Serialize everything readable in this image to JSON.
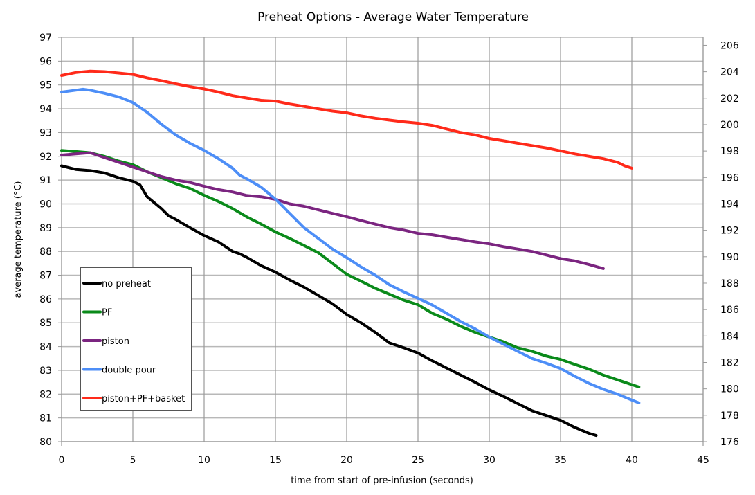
{
  "chart_data": {
    "type": "line",
    "title": "Preheat Options - Average Water Temperature",
    "xlabel": "time from start of pre-infusion (seconds)",
    "ylabel": "average temperature (°C)",
    "xlim": [
      0,
      45
    ],
    "ylim": [
      80,
      97
    ],
    "y2lim_fahrenheit": [
      176,
      206.6
    ],
    "x_ticks": [
      0,
      5,
      10,
      15,
      20,
      25,
      30,
      35,
      40,
      45
    ],
    "y_ticks": [
      80,
      81,
      82,
      83,
      84,
      85,
      86,
      87,
      88,
      89,
      90,
      91,
      92,
      93,
      94,
      95,
      96,
      97
    ],
    "y2_ticks": [
      176,
      178,
      180,
      182,
      184,
      186,
      188,
      190,
      192,
      194,
      196,
      198,
      200,
      202,
      204,
      206
    ],
    "grid": true,
    "legend_position": "lower-left",
    "series": [
      {
        "name": "no preheat",
        "color": "#000000",
        "x": [
          0,
          1,
          2,
          3,
          4,
          5,
          5.5,
          6,
          7,
          7.5,
          8,
          9,
          10,
          11,
          12,
          12.5,
          13,
          14,
          15,
          16,
          17,
          18,
          19,
          20,
          21,
          22,
          23,
          24,
          25,
          26,
          27,
          28,
          29,
          30,
          31,
          32,
          33,
          34,
          35,
          36,
          37,
          37.5
        ],
        "values": [
          91.6,
          91.45,
          91.4,
          91.3,
          91.1,
          90.95,
          90.8,
          90.3,
          89.8,
          89.5,
          89.35,
          89.0,
          88.67,
          88.4,
          88.0,
          87.9,
          87.75,
          87.4,
          87.13,
          86.8,
          86.5,
          86.15,
          85.8,
          85.35,
          85.0,
          84.6,
          84.15,
          83.95,
          83.73,
          83.4,
          83.1,
          82.8,
          82.5,
          82.18,
          81.9,
          81.6,
          81.3,
          81.1,
          80.9,
          80.6,
          80.35,
          80.26
        ]
      },
      {
        "name": "PF",
        "color": "#0a8a1a",
        "x": [
          0,
          1,
          2,
          3,
          4,
          5,
          6,
          7,
          8,
          9,
          10,
          11,
          12,
          13,
          14,
          15,
          16,
          17,
          18,
          19,
          20,
          21,
          22,
          23,
          24,
          25,
          26,
          27,
          28,
          29,
          30,
          31,
          32,
          33,
          34,
          35,
          36,
          37,
          38,
          39,
          40,
          40.5
        ],
        "values": [
          92.25,
          92.2,
          92.15,
          92.0,
          91.8,
          91.65,
          91.35,
          91.1,
          90.85,
          90.65,
          90.36,
          90.1,
          89.8,
          89.45,
          89.15,
          88.82,
          88.55,
          88.25,
          87.95,
          87.5,
          87.04,
          86.75,
          86.45,
          86.2,
          85.95,
          85.76,
          85.4,
          85.15,
          84.85,
          84.6,
          84.4,
          84.2,
          83.95,
          83.8,
          83.6,
          83.46,
          83.25,
          83.05,
          82.8,
          82.6,
          82.4,
          82.3
        ]
      },
      {
        "name": "piston",
        "color": "#7b2580",
        "x": [
          0,
          1,
          2,
          3,
          4,
          5,
          6,
          7,
          8,
          9,
          10,
          11,
          12,
          13,
          14,
          15,
          16,
          17,
          18,
          19,
          20,
          21,
          22,
          23,
          24,
          25,
          26,
          27,
          28,
          29,
          30,
          31,
          32,
          33,
          34,
          35,
          36,
          37,
          38
        ],
        "values": [
          92.05,
          92.1,
          92.15,
          91.95,
          91.75,
          91.55,
          91.35,
          91.15,
          91.0,
          90.9,
          90.74,
          90.6,
          90.5,
          90.35,
          90.3,
          90.19,
          90.0,
          89.9,
          89.75,
          89.6,
          89.46,
          89.3,
          89.15,
          89.0,
          88.9,
          88.76,
          88.7,
          88.6,
          88.5,
          88.4,
          88.32,
          88.2,
          88.1,
          88.0,
          87.85,
          87.7,
          87.6,
          87.45,
          87.28
        ]
      },
      {
        "name": "double pour",
        "color": "#4d8ef7",
        "x": [
          0,
          1,
          1.5,
          2,
          3,
          4,
          5,
          6,
          7,
          8,
          9,
          10,
          11,
          12,
          12.5,
          13,
          14,
          15,
          16,
          17,
          18,
          19,
          20,
          21,
          22,
          23,
          24,
          25,
          26,
          27,
          28,
          29,
          30,
          31,
          32,
          33,
          34,
          35,
          36,
          37,
          38,
          39,
          40,
          40.5
        ],
        "values": [
          94.7,
          94.78,
          94.82,
          94.78,
          94.65,
          94.5,
          94.26,
          93.85,
          93.35,
          92.9,
          92.55,
          92.25,
          91.9,
          91.5,
          91.2,
          91.05,
          90.7,
          90.2,
          89.6,
          89.0,
          88.55,
          88.1,
          87.74,
          87.35,
          87.0,
          86.6,
          86.3,
          86.03,
          85.75,
          85.4,
          85.05,
          84.75,
          84.4,
          84.1,
          83.8,
          83.5,
          83.3,
          83.08,
          82.75,
          82.45,
          82.2,
          82.0,
          81.75,
          81.63
        ]
      },
      {
        "name": "piston+PF+basket",
        "color": "#ff2a1a",
        "x": [
          0,
          1,
          2,
          3,
          4,
          5,
          6,
          7,
          8,
          9,
          10,
          11,
          12,
          13,
          14,
          15,
          16,
          17,
          18,
          19,
          20,
          21,
          22,
          23,
          24,
          25,
          26,
          27,
          28,
          29,
          30,
          31,
          32,
          33,
          34,
          35,
          36,
          37,
          38,
          39,
          39.5,
          40
        ],
        "values": [
          95.4,
          95.52,
          95.58,
          95.56,
          95.5,
          95.44,
          95.3,
          95.18,
          95.05,
          94.93,
          94.83,
          94.7,
          94.55,
          94.45,
          94.35,
          94.32,
          94.2,
          94.1,
          94.0,
          93.9,
          93.83,
          93.7,
          93.6,
          93.52,
          93.45,
          93.39,
          93.3,
          93.15,
          93.0,
          92.9,
          92.75,
          92.65,
          92.55,
          92.45,
          92.35,
          92.23,
          92.1,
          92.0,
          91.9,
          91.75,
          91.6,
          91.5
        ]
      }
    ]
  }
}
